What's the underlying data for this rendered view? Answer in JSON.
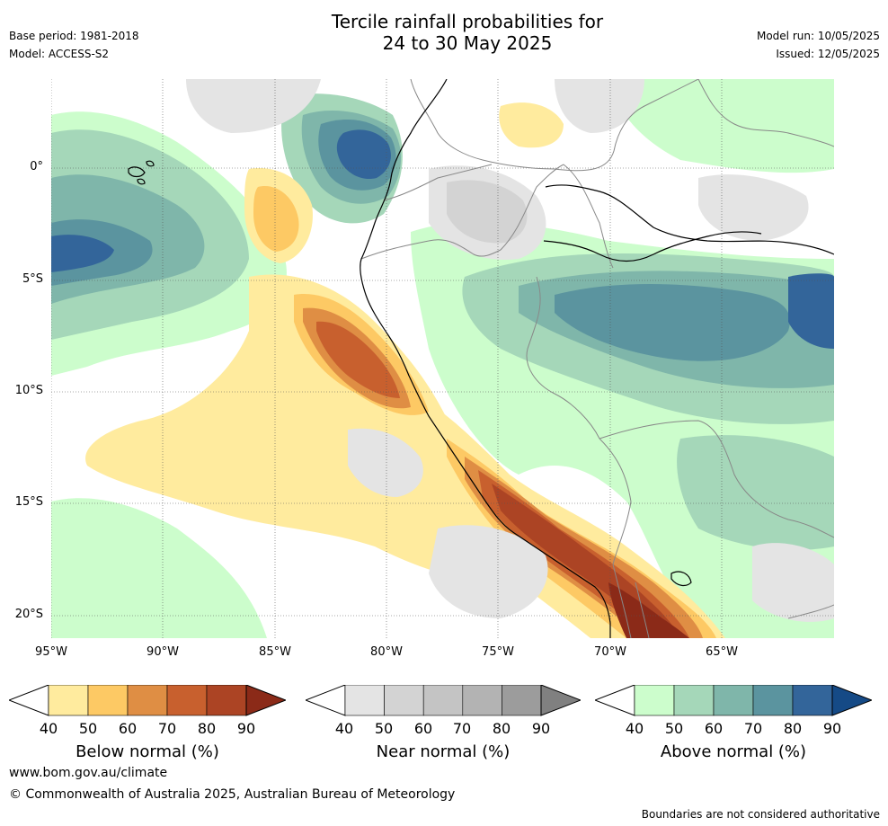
{
  "title_line1": "Tercile rainfall probabilities for",
  "title_line2": "24 to 30 May 2025",
  "base_period": "Base period: 1981-2018",
  "model": "Model: ACCESS-S2",
  "model_run": "Model run: 10/05/2025",
  "issued": "Issued: 12/05/2025",
  "map": {
    "lat_labels": [
      "0°",
      "5°S",
      "10°S",
      "15°S",
      "20°S"
    ],
    "lon_labels": [
      "95°W",
      "90°W",
      "85°W",
      "80°W",
      "75°W",
      "70°W",
      "65°W"
    ],
    "colors": {
      "ocean_bg": "#ffffff",
      "coast": "#000000",
      "border": "#888888",
      "grid": "#555555"
    }
  },
  "colorbars": [
    {
      "title": "Below normal (%)",
      "ticks": [
        "40",
        "50",
        "60",
        "70",
        "80",
        "90"
      ],
      "colors": [
        "#ffffff",
        "#ffeb9e",
        "#fdc964",
        "#df8e44",
        "#c8602e",
        "#ac4424",
        "#8b2a18"
      ]
    },
    {
      "title": "Near normal (%)",
      "ticks": [
        "40",
        "50",
        "60",
        "70",
        "80",
        "90"
      ],
      "colors": [
        "#ffffff",
        "#e4e4e4",
        "#d3d3d3",
        "#c4c4c4",
        "#b3b3b3",
        "#9c9c9c",
        "#808080"
      ]
    },
    {
      "title": "Above normal (%)",
      "ticks": [
        "40",
        "50",
        "60",
        "70",
        "80",
        "90"
      ],
      "colors": [
        "#ffffff",
        "#ccfdcc",
        "#a5d7b9",
        "#7fb6aa",
        "#5b949f",
        "#33659a",
        "#154a86"
      ]
    }
  ],
  "footer_url": "www.bom.gov.au/climate",
  "copyright": "© Commonwealth of Australia 2025, Australian Bureau of Meteorology",
  "disclaimer": "Boundaries are not considered authoritative"
}
